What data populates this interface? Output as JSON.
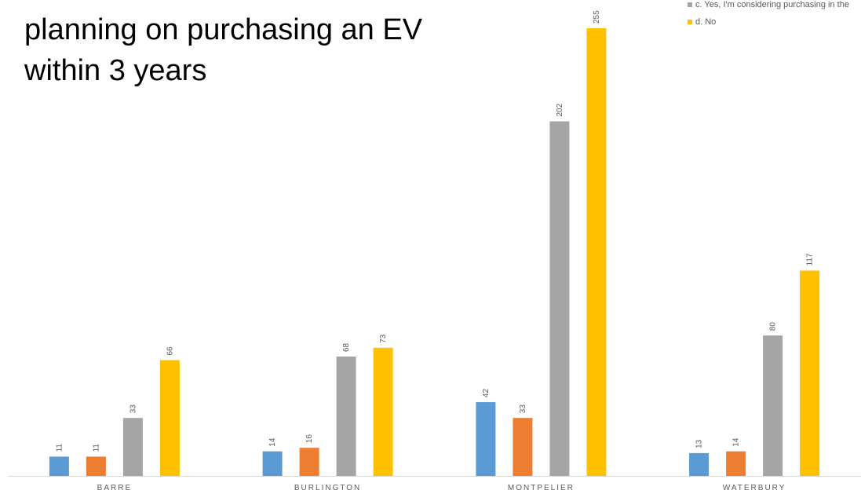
{
  "chart_data": {
    "type": "bar",
    "title": "planning on purchasing an EV\nwithin 3 years",
    "categories": [
      "BARRE",
      "BURLINGTON",
      "MONTPELIER",
      "WATERBURY"
    ],
    "series": [
      {
        "name": "",
        "color": "#5B9BD5",
        "values": [
          11,
          14,
          42,
          13
        ]
      },
      {
        "name": "",
        "color": "#ED7D31",
        "values": [
          11,
          16,
          33,
          14
        ]
      },
      {
        "name": "c.  Yes, I'm considering purchasing in the",
        "color": "#A5A5A5",
        "values": [
          33,
          68,
          202,
          80
        ]
      },
      {
        "name": "d.   No",
        "color": "#FFC000",
        "values": [
          66,
          73,
          255,
          117
        ]
      }
    ],
    "xlabel": "",
    "ylabel": "",
    "ylim": [
      0,
      255
    ],
    "grid": false,
    "legend": "top-right",
    "data_labels": true
  }
}
